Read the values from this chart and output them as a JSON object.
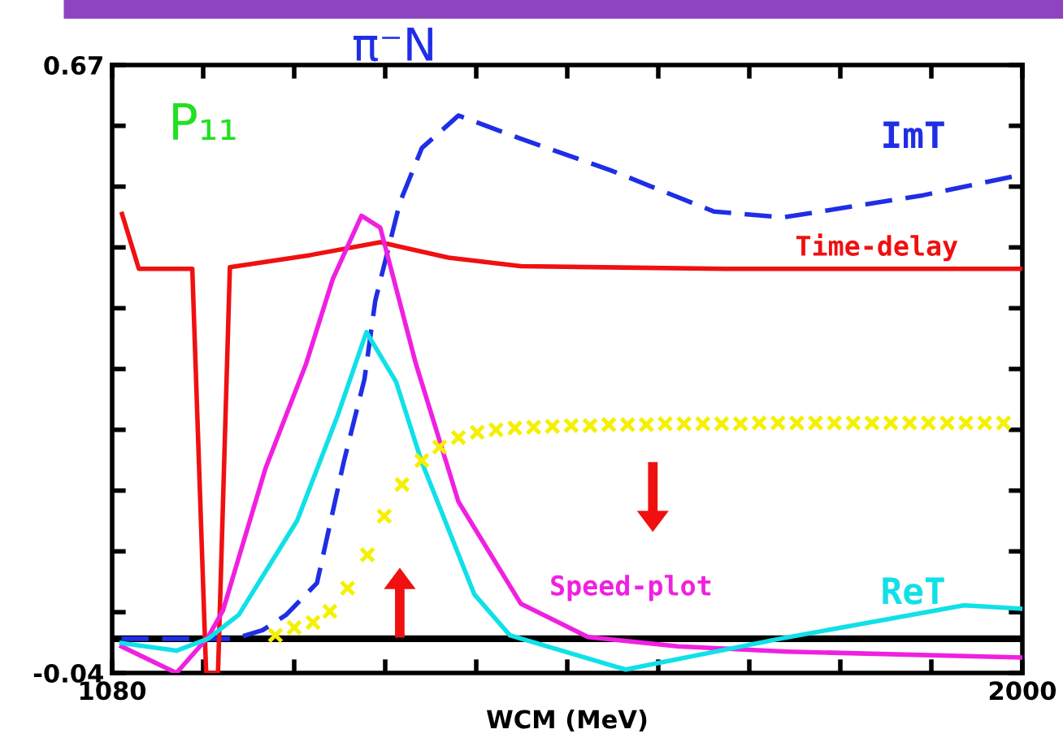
{
  "chart_data": {
    "type": "line",
    "title": "π⁻N",
    "xlabel": "WCM (MeV)",
    "annotations": [
      "P₁₁"
    ],
    "xlim": [
      1080,
      2000
    ],
    "ylim": [
      -0.04,
      0.67
    ],
    "xticks": [
      1080,
      {
        "value": 1172,
        "label": null
      },
      {
        "value": 1264,
        "label": null
      },
      {
        "value": 1356,
        "label": null
      },
      {
        "value": 1448,
        "label": null
      },
      {
        "value": 1540,
        "label": null
      },
      {
        "value": 1632,
        "label": null
      },
      {
        "value": 1724,
        "label": null
      },
      {
        "value": 1816,
        "label": null
      },
      {
        "value": 1908,
        "label": null
      },
      2000
    ],
    "yticks": [
      {
        "value": -0.04,
        "label": "-0.04"
      },
      {
        "value": 0.031,
        "label": null
      },
      {
        "value": 0.102,
        "label": null
      },
      {
        "value": 0.173,
        "label": null
      },
      {
        "value": 0.244,
        "label": null
      },
      {
        "value": 0.315,
        "label": null
      },
      {
        "value": 0.386,
        "label": null
      },
      {
        "value": 0.457,
        "label": null
      },
      {
        "value": 0.528,
        "label": null
      },
      {
        "value": 0.599,
        "label": null
      },
      0.67
    ],
    "ref_lines": [
      {
        "axis": "y",
        "value": 0,
        "color": "#000000"
      }
    ],
    "series": [
      {
        "name": "ImT",
        "color": "#1f2ee6",
        "line_style": "dashed",
        "x": [
          1089.5,
          1203.5,
          1232,
          1256,
          1287,
          1314,
          1335,
          1346,
          1371,
          1393,
          1430,
          1493,
          1584,
          1688,
          1758,
          1900,
          2000
        ],
        "values": [
          0,
          0,
          0.01,
          0.028,
          0.065,
          0.206,
          0.303,
          0.395,
          0.51,
          0.573,
          0.611,
          0.584,
          0.547,
          0.499,
          0.492,
          0.518,
          0.542
        ]
      },
      {
        "name": "Time-delay",
        "color": "#f01010",
        "line_style": "solid",
        "x": [
          1090,
          1107,
          1161,
          1175,
          1180,
          1187,
          1199,
          1280,
          1351,
          1420,
          1493,
          1700,
          2000
        ],
        "values": [
          0.496,
          0.432,
          0.432,
          -0.04,
          -0.04,
          -0.04,
          0.434,
          0.448,
          0.463,
          0.445,
          0.435,
          0.432,
          0.432
        ]
      },
      {
        "name": "Speed-plot",
        "color": "#f020e0",
        "line_style": "solid",
        "x": [
          1089.5,
          1145,
          1177,
          1192,
          1235,
          1276,
          1303,
          1332,
          1351,
          1387,
          1430,
          1493,
          1561,
          1652,
          1762,
          2000
        ],
        "values": [
          -0.009,
          -0.04,
          0.002,
          0.033,
          0.199,
          0.321,
          0.42,
          0.494,
          0.48,
          0.321,
          0.16,
          0.041,
          0.002,
          -0.009,
          -0.015,
          -0.022
        ]
      },
      {
        "name": "ReT",
        "color": "#10e0e8",
        "line_style": "solid",
        "x": [
          1089.5,
          1145,
          1177,
          1208,
          1267,
          1308,
          1337,
          1367,
          1393,
          1446,
          1482,
          1599,
          1755,
          1941,
          2000
        ],
        "values": [
          -0.005,
          -0.014,
          0,
          0.028,
          0.138,
          0.261,
          0.358,
          0.3,
          0.206,
          0.052,
          0.004,
          -0.036,
          0,
          0.039,
          0.035
        ]
      },
      {
        "type": "scatter",
        "marker": "cross",
        "color": "#f5f000",
        "x": [
          1245,
          1264,
          1283,
          1300,
          1318,
          1338,
          1355,
          1373,
          1393,
          1411,
          1430,
          1449,
          1468,
          1487,
          1506,
          1525,
          1544,
          1563,
          1582,
          1601,
          1620,
          1639,
          1658,
          1677,
          1696,
          1715,
          1734,
          1753,
          1772,
          1791,
          1810,
          1829,
          1848,
          1867,
          1886,
          1905,
          1924,
          1943,
          1962,
          1981
        ],
        "values": [
          0.004,
          0.013,
          0.019,
          0.032,
          0.059,
          0.098,
          0.143,
          0.18,
          0.208,
          0.224,
          0.235,
          0.241,
          0.244,
          0.246,
          0.247,
          0.248,
          0.249,
          0.249,
          0.25,
          0.25,
          0.25,
          0.251,
          0.251,
          0.251,
          0.251,
          0.251,
          0.252,
          0.252,
          0.252,
          0.252,
          0.252,
          0.252,
          0.252,
          0.252,
          0.252,
          0.252,
          0.252,
          0.252,
          0.252,
          0.252
        ]
      }
    ]
  }
}
